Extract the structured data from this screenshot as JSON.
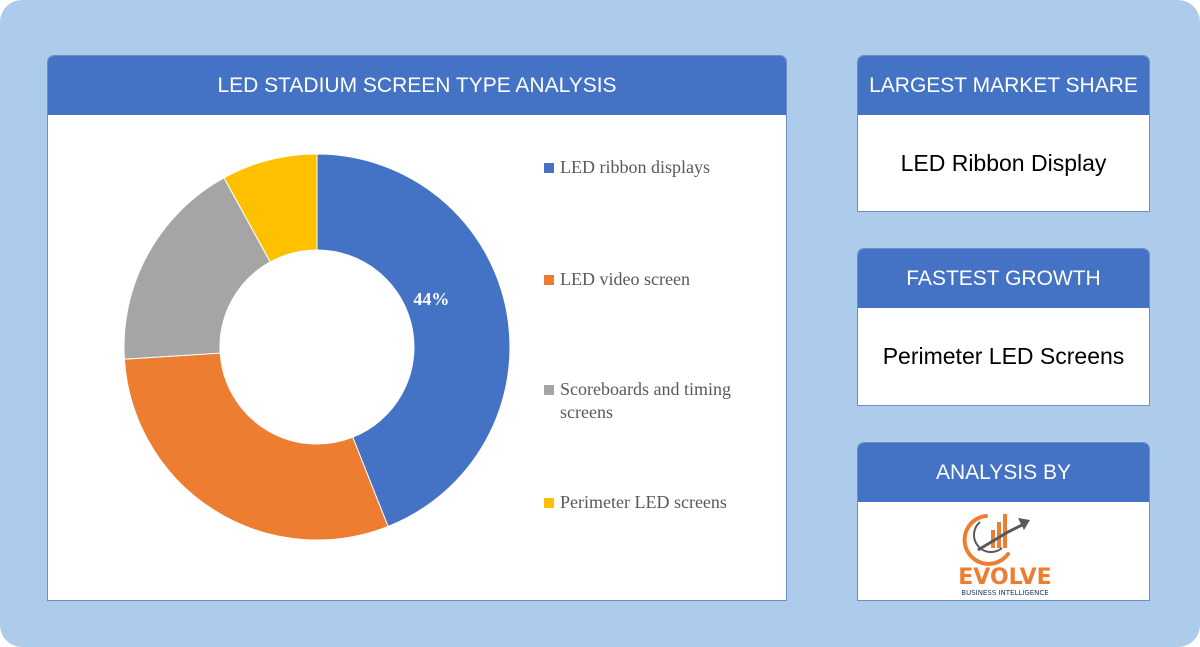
{
  "chart_data": {
    "type": "pie",
    "title": "LED STADIUM SCREEN TYPE ANALYSIS",
    "categories": [
      "LED ribbon displays",
      "LED video screen",
      "Scoreboards and timing screens",
      "Perimeter LED screens"
    ],
    "values": [
      44,
      30,
      18,
      8
    ],
    "data_labels": [
      "44%",
      "",
      "",
      ""
    ],
    "colors": [
      "#4472c4",
      "#ed7d31",
      "#a5a5a5",
      "#ffc000"
    ],
    "legend": "right"
  },
  "cards": [
    {
      "title": "LARGEST MARKET SHARE",
      "value": "LED Ribbon Display"
    },
    {
      "title": "FASTEST GROWTH",
      "value": "Perimeter LED Screens"
    },
    {
      "title": "ANALYSIS BY"
    }
  ],
  "logo": {
    "name": "EVOLVE",
    "tagline": "BUSINESS INTELLIGENCE",
    "colors": {
      "primary": "#ed7d31",
      "secondary": "#595959"
    }
  }
}
